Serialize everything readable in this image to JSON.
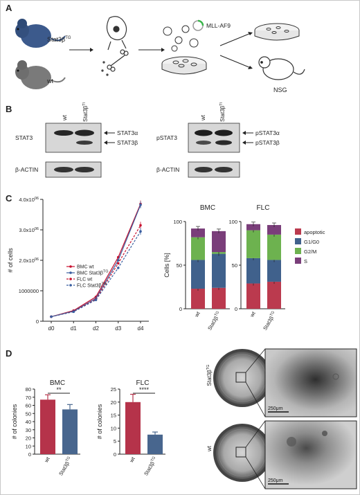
{
  "panel_letters": {
    "a": "A",
    "b": "B",
    "c": "C",
    "d": "D"
  },
  "panelA": {
    "mouse_tg_label": "Stat3β",
    "mouse_tg_sup": "TG",
    "mouse_wt_label": "wt",
    "virus_label": "MLL-AF9",
    "recipient_label": "NSG"
  },
  "panelB": {
    "left_blot": {
      "lane_labels": [
        "wt",
        "Stat3β",
        "TG"
      ],
      "row1_label": "STAT3",
      "row2_label": "β-ACTIN",
      "arrow1": "STAT3α",
      "arrow2": "STAT3β"
    },
    "right_blot": {
      "lane_labels": [
        "wt",
        "Stat3β",
        "TG"
      ],
      "row1_label": "pSTAT3",
      "row2_label": "β-ACTIN",
      "arrow1": "pSTAT3α",
      "arrow2": "pSTAT3β"
    }
  },
  "chart_data": [
    {
      "type": "line",
      "ylabel": "# of cells",
      "x": [
        "d0",
        "d1",
        "d2",
        "d3",
        "d4"
      ],
      "ytick_labels": [
        "0",
        "1000000",
        "2.0x10",
        "3.0x10",
        "4.0x10"
      ],
      "ytick_sup": "06",
      "ylim": [
        0,
        4000000
      ],
      "series": [
        {
          "name": "BMC wt",
          "color": "#c8102e",
          "dash": false,
          "values": [
            150000,
            350000,
            800000,
            2100000,
            3850000
          ]
        },
        {
          "name": "BMC Stat3β",
          "name_sup": "TG",
          "color": "#3a5fa0",
          "dash": false,
          "values": [
            150000,
            330000,
            750000,
            2000000,
            3820000
          ]
        },
        {
          "name": "FLC wt",
          "color": "#c8102e",
          "dash": true,
          "values": [
            150000,
            320000,
            720000,
            1900000,
            3150000
          ]
        },
        {
          "name": "FLC Stat3β",
          "name_sup": "TG",
          "color": "#3a5fa0",
          "dash": true,
          "values": [
            150000,
            310000,
            700000,
            1750000,
            2950000
          ]
        }
      ]
    },
    {
      "type": "bar",
      "stacked": true,
      "ylabel": "Cells [%]",
      "ylim": [
        0,
        100
      ],
      "yticks": [
        "0",
        "50",
        "100"
      ],
      "groups": [
        {
          "title": "BMC",
          "categories": [
            "wt",
            "Stat3β"
          ],
          "cat_sup": [
            "",
            "TG"
          ],
          "apoptotic": [
            23,
            24
          ],
          "G1/G0": [
            33,
            39
          ],
          "G2/M": [
            26,
            2
          ],
          "S": [
            10,
            24
          ]
        },
        {
          "title": "FLC",
          "categories": [
            "wt",
            "Stat3β"
          ],
          "cat_sup": [
            "",
            "TG"
          ],
          "apoptotic": [
            29,
            31
          ],
          "G1/G0": [
            29,
            25
          ],
          "G2/M": [
            32,
            29
          ],
          "S": [
            7,
            11
          ]
        }
      ],
      "legend": [
        {
          "name": "apoptotic",
          "color": "#bb3a4e"
        },
        {
          "name": "G1/G0",
          "color": "#40618c"
        },
        {
          "name": "G2/M",
          "color": "#6db24f"
        },
        {
          "name": "S",
          "color": "#7a3e7a"
        }
      ]
    },
    {
      "type": "bar",
      "title": "BMC",
      "ylabel": "# of colonies",
      "categories": [
        "wt",
        "Stat3β"
      ],
      "cat_sup": [
        "",
        "TG"
      ],
      "values": [
        67,
        55
      ],
      "errors": [
        6,
        6
      ],
      "ylim": [
        0,
        80
      ],
      "yticks": [
        "0",
        "10",
        "20",
        "30",
        "40",
        "50",
        "60",
        "70",
        "80"
      ],
      "significance": "**",
      "colors": [
        "#b5334a",
        "#48668e"
      ]
    },
    {
      "type": "bar",
      "title": "FLC",
      "ylabel": "# of colonies",
      "categories": [
        "wt",
        "Stat3β"
      ],
      "cat_sup": [
        "",
        "TG"
      ],
      "values": [
        20,
        7.5
      ],
      "errors": [
        3,
        1
      ],
      "ylim": [
        0,
        25
      ],
      "yticks": [
        "0",
        "5",
        "10",
        "15",
        "20",
        "25"
      ],
      "significance": "****",
      "colors": [
        "#b5334a",
        "#48668e"
      ]
    }
  ],
  "panelD_images": {
    "row1_label": "Stat3β",
    "row1_sup": "TG",
    "row2_label": "wt",
    "scale_bar": "250μm"
  }
}
